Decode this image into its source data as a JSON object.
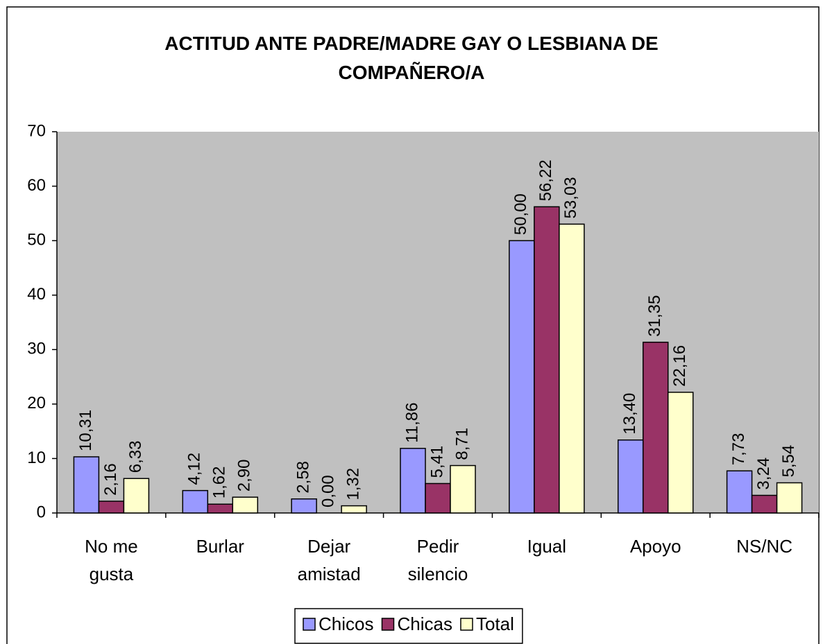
{
  "chart_data": {
    "type": "bar",
    "title": "ACTITUD ANTE PADRE/MADRE GAY O LESBIANA DE COMPAÑERO/A",
    "categories": [
      "No me gusta",
      "Burlar",
      "Dejar amistad",
      "Pedir silencio",
      "Igual",
      "Apoyo",
      "NS/NC"
    ],
    "series": [
      {
        "name": "Chicos",
        "color": "#9999ff",
        "values": [
          10.31,
          4.12,
          2.58,
          11.86,
          50.0,
          13.4,
          7.73
        ],
        "value_labels": [
          "10,31",
          "4,12",
          "2,58",
          "11,86",
          "50,00",
          "13,40",
          "7,73"
        ]
      },
      {
        "name": "Chicas",
        "color": "#993366",
        "values": [
          2.16,
          1.62,
          0.0,
          5.41,
          56.22,
          31.35,
          3.24
        ],
        "value_labels": [
          "2,16",
          "1,62",
          "0,00",
          "5,41",
          "56,22",
          "31,35",
          "3,24"
        ]
      },
      {
        "name": "Total",
        "color": "#ffffcc",
        "values": [
          6.33,
          2.9,
          1.32,
          8.71,
          53.03,
          22.16,
          5.54
        ],
        "value_labels": [
          "6,33",
          "2,90",
          "1,32",
          "8,71",
          "53,03",
          "22,16",
          "5,54"
        ]
      }
    ],
    "ylim": [
      0,
      70
    ],
    "yticks": [
      0,
      10,
      20,
      30,
      40,
      50,
      60,
      70
    ],
    "legend": "bottom"
  }
}
